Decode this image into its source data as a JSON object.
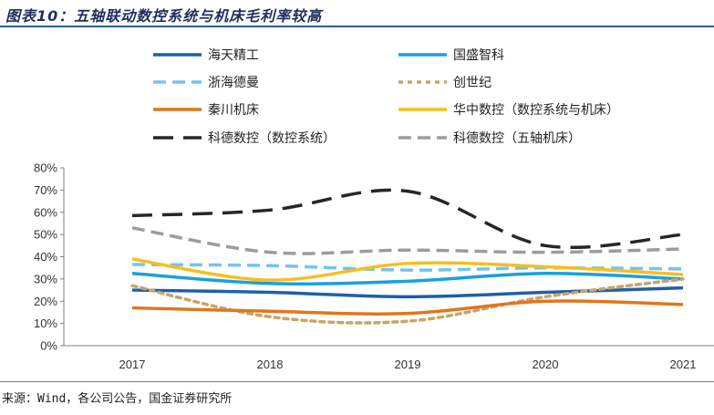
{
  "title": "图表10：五轴联动数控系统与机床毛利率较高",
  "source": "来源：Wind，各公司公告，国金证券研究所",
  "chart_data": {
    "type": "line",
    "x": [
      "2017",
      "2018",
      "2019",
      "2020",
      "2021"
    ],
    "ylim": [
      0,
      0.8
    ],
    "yticks": [
      "0%",
      "10%",
      "20%",
      "30%",
      "40%",
      "50%",
      "60%",
      "70%",
      "80%"
    ],
    "grid": false,
    "legend_position": "top",
    "series": [
      {
        "name": "海天精工",
        "values": [
          0.25,
          0.24,
          0.22,
          0.24,
          0.26
        ],
        "color": "#1f5fa6",
        "dash": "solid"
      },
      {
        "name": "国盛智科",
        "values": [
          0.325,
          0.28,
          0.29,
          0.325,
          0.3
        ],
        "color": "#1aa0e0",
        "dash": "solid"
      },
      {
        "name": "浙海德曼",
        "values": [
          0.365,
          0.36,
          0.34,
          0.35,
          0.345
        ],
        "color": "#74c3ee",
        "dash": "dashed"
      },
      {
        "name": "创世纪",
        "values": [
          0.27,
          0.13,
          0.11,
          0.22,
          0.3
        ],
        "color": "#c9a46a",
        "dash": "dotted"
      },
      {
        "name": "秦川机床",
        "values": [
          0.17,
          0.155,
          0.145,
          0.2,
          0.185
        ],
        "color": "#e0761c",
        "dash": "solid"
      },
      {
        "name": "华中数控（数控系统与机床）",
        "values": [
          0.39,
          0.295,
          0.37,
          0.355,
          0.32
        ],
        "color": "#f7be1e",
        "dash": "solid"
      },
      {
        "name": "科德数控（数控系统）",
        "values": [
          0.585,
          0.61,
          0.695,
          0.45,
          0.5
        ],
        "color": "#262626",
        "dash": "longdash"
      },
      {
        "name": "科德数控（五轴机床）",
        "values": [
          0.53,
          0.42,
          0.43,
          0.42,
          0.435
        ],
        "color": "#9c9c9c",
        "dash": "dashed"
      }
    ]
  }
}
